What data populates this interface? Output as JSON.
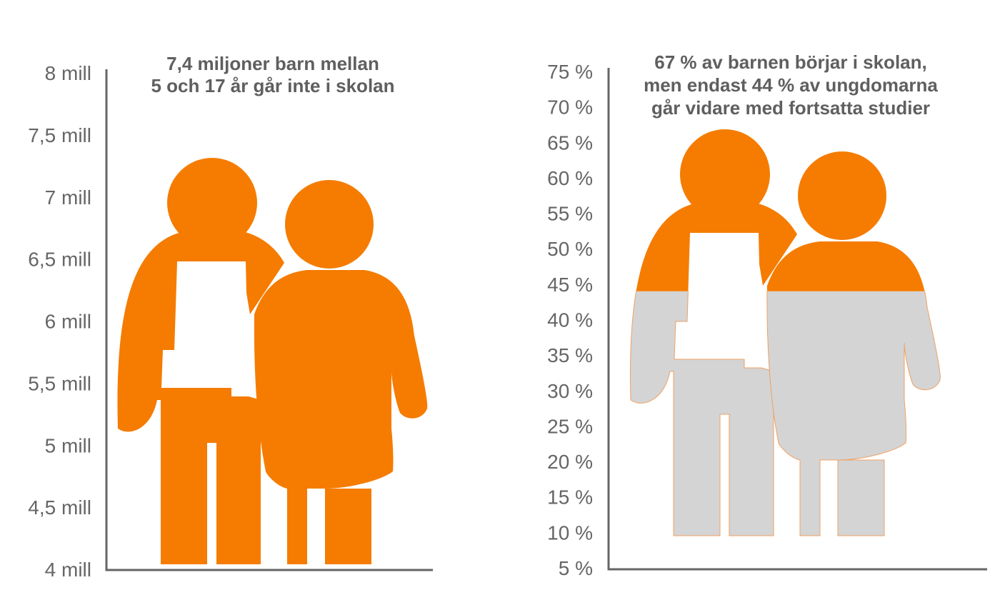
{
  "chart_data": [
    {
      "type": "pictograph",
      "title_lines": [
        "7,4 miljoner barn mellan",
        "5 och 17 år går inte i skolan"
      ],
      "y_ticks": [
        "4 mill",
        "4,5 mill",
        "5 mill",
        "5,5 mill",
        "6 mill",
        "6,5 mill",
        "7 mill",
        "7,5 mill",
        "8 mill"
      ],
      "ylim": [
        4,
        8
      ],
      "unit": "miljoner",
      "value": 7.4,
      "colors": {
        "filled": "#f57c00"
      }
    },
    {
      "type": "pictograph",
      "title_lines": [
        "67 % av barnen börjar i skolan,",
        "men endast 44 % av ungdomarna",
        "går vidare med fortsatta studier"
      ],
      "y_ticks": [
        "5 %",
        "10 %",
        "15 %",
        "20 %",
        "25 %",
        "30 %",
        "35 %",
        "40 %",
        "45 %",
        "50 %",
        "55 %",
        "60 %",
        "65 %",
        "70 %",
        "75 %"
      ],
      "ylim": [
        5,
        75
      ],
      "unit": "%",
      "values": [
        67,
        44
      ],
      "value": 44,
      "colors": {
        "filled": "#f57c00",
        "empty": "#d4d4d4"
      }
    }
  ]
}
